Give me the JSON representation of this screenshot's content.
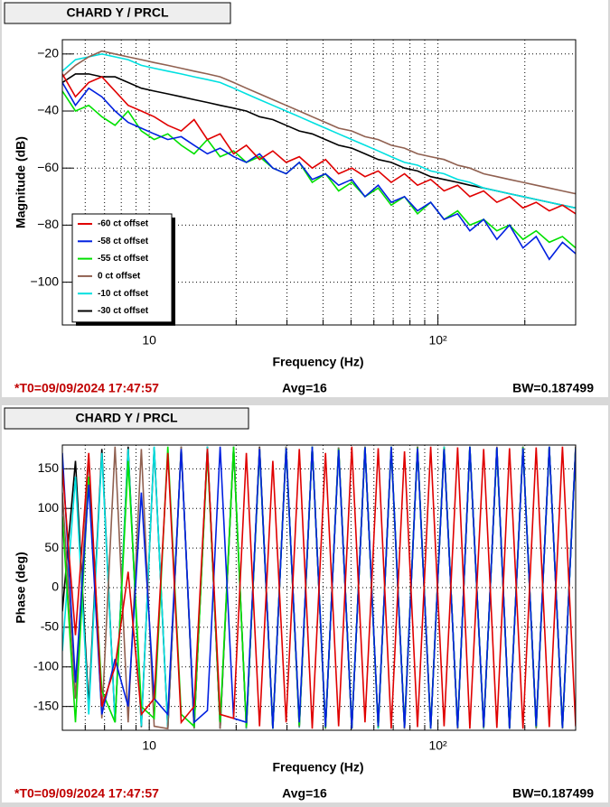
{
  "chart_data": [
    {
      "type": "line",
      "title": "CHARD Y / PRCL",
      "xlabel": "Frequency (Hz)",
      "ylabel": "Magnitude (dB)",
      "log_x": true,
      "grid": true,
      "legend": "bottom-left",
      "xlim": [
        5,
        300
      ],
      "ylim": [
        -115,
        -15
      ],
      "xticks": [
        10,
        {
          "value": 100,
          "label": "10²"
        }
      ],
      "minor_xticks": [
        6,
        7,
        8,
        9,
        20,
        30,
        40,
        50,
        60,
        70,
        80,
        90,
        200,
        300
      ],
      "yticks": [
        {
          "value": -100,
          "label": "−100"
        },
        {
          "value": -80,
          "label": "−80"
        },
        {
          "value": -60,
          "label": "−60"
        },
        {
          "value": -40,
          "label": "−40"
        },
        {
          "value": -20,
          "label": "−20"
        }
      ],
      "footer": [
        "*T0=09/09/2024 17:47:57",
        "Avg=16",
        "BW=0.187499"
      ],
      "x": [
        5,
        5.55,
        6.17,
        6.85,
        7.61,
        8.45,
        9.39,
        10.4,
        11.6,
        12.9,
        14.3,
        15.9,
        17.6,
        19.6,
        21.7,
        24.1,
        26.8,
        29.8,
        33.1,
        36.7,
        40.8,
        45.3,
        50.3,
        55.9,
        62.1,
        68.9,
        76.6,
        85,
        94.4,
        105,
        117,
        129,
        144,
        160,
        177,
        197,
        219,
        243,
        270,
        300
      ],
      "series": [
        {
          "name": "-60 ct offset",
          "color": "#e00000",
          "values": [
            -27,
            -35,
            -30,
            -28,
            -33,
            -38,
            -40,
            -42,
            -45,
            -47,
            -43,
            -50,
            -48,
            -55,
            -52,
            -57,
            -54,
            -58,
            -56,
            -60,
            -57,
            -62,
            -60,
            -63,
            -61,
            -65,
            -62,
            -66,
            -64,
            -68,
            -66,
            -70,
            -68,
            -72,
            -70,
            -74,
            -72,
            -75,
            -73,
            -76
          ]
        },
        {
          "name": "-58 ct offset",
          "color": "#0020e0",
          "values": [
            -30,
            -38,
            -32,
            -35,
            -40,
            -44,
            -46,
            -48,
            -50,
            -49,
            -52,
            -55,
            -53,
            -56,
            -58,
            -55,
            -60,
            -62,
            -58,
            -64,
            -62,
            -66,
            -64,
            -70,
            -66,
            -72,
            -70,
            -75,
            -72,
            -78,
            -76,
            -82,
            -78,
            -85,
            -80,
            -88,
            -84,
            -92,
            -86,
            -90
          ]
        },
        {
          "name": "-55 ct offset",
          "color": "#00e000",
          "values": [
            -33,
            -40,
            -38,
            -42,
            -45,
            -40,
            -47,
            -50,
            -48,
            -52,
            -55,
            -50,
            -56,
            -54,
            -58,
            -56,
            -60,
            -62,
            -58,
            -65,
            -62,
            -68,
            -65,
            -70,
            -67,
            -73,
            -70,
            -76,
            -72,
            -78,
            -75,
            -80,
            -78,
            -82,
            -80,
            -85,
            -82,
            -86,
            -84,
            -88
          ]
        },
        {
          "name": "0 ct offset",
          "color": "#906050",
          "values": [
            -28,
            -24,
            -21,
            -19,
            -20,
            -21,
            -22,
            -23,
            -24,
            -25,
            -26,
            -27,
            -28,
            -30,
            -32,
            -34,
            -36,
            -38,
            -40,
            -42,
            -44,
            -46,
            -47,
            -49,
            -50,
            -52,
            -53,
            -55,
            -56,
            -57,
            -59,
            -60,
            -62,
            -63,
            -64,
            -65,
            -66,
            -67,
            -68,
            -69
          ]
        },
        {
          "name": "-10 ct offset",
          "color": "#00e0e0",
          "values": [
            -26,
            -22,
            -21,
            -20,
            -21,
            -22,
            -24,
            -25,
            -26,
            -27,
            -28,
            -29,
            -30,
            -32,
            -34,
            -36,
            -38,
            -40,
            -42,
            -44,
            -46,
            -48,
            -50,
            -52,
            -54,
            -56,
            -58,
            -59,
            -61,
            -62,
            -64,
            -65,
            -67,
            -68,
            -69,
            -70,
            -71,
            -72,
            -73,
            -74
          ]
        },
        {
          "name": "-30 ct offset",
          "color": "#000000",
          "values": [
            -30,
            -27,
            -27,
            -28,
            -28,
            -30,
            -32,
            -33,
            -34,
            -35,
            -36,
            -37,
            -38,
            -39,
            -40,
            -42,
            -43,
            -45,
            -47,
            -48,
            -50,
            -52,
            -53,
            -55,
            -57,
            -58,
            -60,
            -61,
            -63,
            -64,
            -65,
            -66,
            -67,
            -68,
            -69,
            -70,
            -71,
            -72,
            -73,
            -74
          ]
        }
      ]
    },
    {
      "type": "line",
      "title": "CHARD Y / PRCL",
      "xlabel": "Frequency (Hz)",
      "ylabel": "Phase (deg)",
      "log_x": true,
      "grid": true,
      "xlim": [
        5,
        300
      ],
      "ylim": [
        -180,
        180
      ],
      "xticks": [
        10,
        {
          "value": 100,
          "label": "10²"
        }
      ],
      "minor_xticks": [
        6,
        7,
        8,
        9,
        20,
        30,
        40,
        50,
        60,
        70,
        80,
        90,
        200,
        300
      ],
      "yticks": [
        -150,
        -100,
        -50,
        0,
        50,
        100,
        150
      ],
      "footer": [
        "*T0=09/09/2024 17:47:57",
        "Avg=16",
        "BW=0.187499"
      ],
      "x": [
        5,
        5.55,
        6.17,
        6.85,
        7.61,
        8.45,
        9.39,
        10.4,
        11.6,
        12.9,
        14.3,
        15.9,
        17.6,
        19.6,
        21.7,
        24.1,
        26.8,
        29.8,
        33.1,
        36.7,
        40.8,
        45.3,
        50.3,
        55.9,
        62.1,
        68.9,
        76.6,
        85,
        94.4,
        105,
        117,
        129,
        144,
        160,
        177,
        197,
        219,
        243,
        270,
        300
      ],
      "series": [
        {
          "color": "#e00000",
          "values": [
            150,
            -60,
            170,
            -150,
            -100,
            20,
            -160,
            -140,
            170,
            -170,
            -150,
            175,
            -160,
            -165,
            170,
            -175,
            160,
            -170,
            175,
            -178,
            170,
            -175,
            178,
            -170,
            176,
            -178,
            172,
            -176,
            178,
            -175,
            177,
            -178,
            175,
            -177,
            176,
            -178,
            177,
            -176,
            178,
            -175
          ]
        },
        {
          "color": "#0020e0",
          "values": [
            170,
            -120,
            130,
            -160,
            -90,
            -150,
            120,
            -140,
            -160,
            175,
            -170,
            -155,
            178,
            -165,
            -170,
            175,
            -178,
            176,
            -170,
            178,
            -176,
            174,
            -178,
            177,
            -175,
            178,
            -177,
            176,
            -178,
            175,
            -177,
            178,
            -176,
            177,
            -178,
            176,
            -175,
            178,
            -177,
            176
          ]
        },
        {
          "color": "#00e000",
          "values": [
            90,
            -170,
            140,
            -130,
            -170,
            160,
            -150,
            -165,
            178,
            -160,
            -175,
            170,
            -170,
            178,
            -176,
            172,
            -178,
            176,
            -174,
            178,
            -177,
            175,
            -178,
            177,
            -176,
            178,
            -175,
            177,
            -178,
            176,
            -177,
            178,
            -176,
            175,
            -178,
            177,
            -176,
            178,
            -177,
            176
          ]
        },
        {
          "color": "#906050",
          "values": [
            120,
            -140,
            165,
            -165,
            178,
            -170,
            175,
            -175,
            -178,
            178,
            -178,
            176,
            -178,
            178,
            -177,
            177,
            -178,
            178,
            -176,
            178,
            -178,
            177,
            -178,
            178,
            -176,
            177,
            -178,
            178,
            -177,
            176,
            -178,
            178,
            -177,
            178,
            -176,
            178,
            -178,
            177,
            -178,
            178
          ]
        },
        {
          "color": "#00e0e0",
          "values": [
            -80,
            140,
            -160,
            170,
            -170,
            175,
            -175,
            178,
            -178,
            177,
            -178,
            178,
            -177,
            178,
            -178,
            176,
            -178,
            178,
            -177,
            178,
            -178,
            177,
            -176,
            178,
            -178,
            177,
            -178,
            176,
            -178,
            178,
            -177,
            178,
            -178,
            177,
            -176,
            178,
            -178,
            177,
            -178,
            176
          ]
        },
        {
          "color": "#000000",
          "values": [
            -30,
            160,
            -150,
            175,
            -170,
            178,
            -176,
            177,
            -178,
            178,
            -177,
            178,
            -178,
            176,
            -178,
            178,
            -177,
            178,
            -176,
            178,
            -178,
            177,
            -178,
            178,
            -177,
            176,
            -178,
            178,
            -177,
            178,
            -178,
            176,
            -178,
            177,
            -178,
            178,
            -176,
            178,
            -177,
            178
          ]
        }
      ]
    }
  ]
}
